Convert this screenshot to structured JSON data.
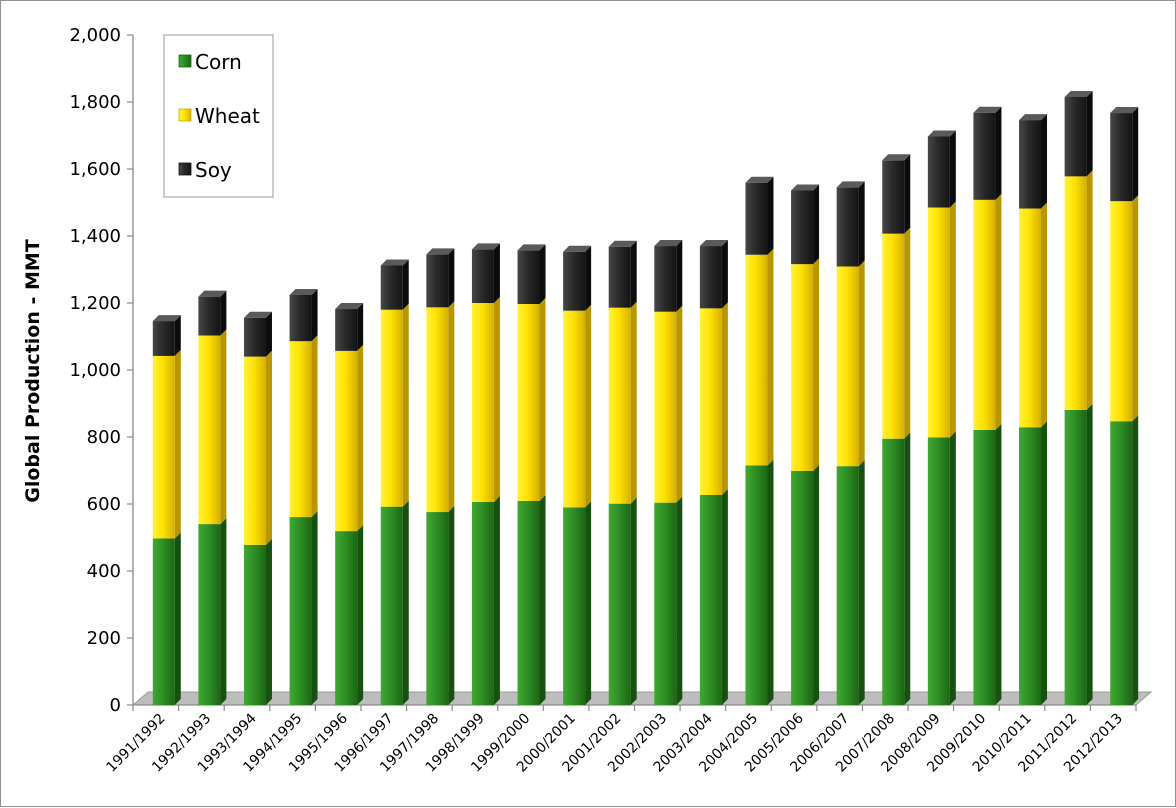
{
  "chart_data": {
    "type": "bar",
    "stacked": true,
    "style": "3d-column",
    "title": "",
    "xlabel": "",
    "ylabel": "Global Production - MMT",
    "ylim": [
      0,
      2000
    ],
    "yticks": [
      0,
      200,
      400,
      600,
      800,
      1000,
      1200,
      1400,
      1600,
      1800,
      2000
    ],
    "ytick_labels": [
      "0",
      "200",
      "400",
      "600",
      "800",
      "1,000",
      "1,200",
      "1,400",
      "1,600",
      "1,800",
      "2,000"
    ],
    "grid": false,
    "legend_position": "top-left",
    "categories": [
      "1991/1992",
      "1992/1993",
      "1993/1994",
      "1994/1995",
      "1995/1996",
      "1996/1997",
      "1997/1998",
      "1998/1999",
      "1999/2000",
      "2000/2001",
      "2001/2002",
      "2002/2003",
      "2003/2004",
      "2004/2005",
      "2005/2006",
      "2006/2007",
      "2007/2008",
      "2008/2009",
      "2009/2010",
      "2010/2011",
      "2011/2012",
      "2012/2013"
    ],
    "series": [
      {
        "name": "Corn",
        "color": "#2e8b22",
        "values": [
          497,
          540,
          478,
          561,
          519,
          592,
          576,
          606,
          609,
          590,
          601,
          604,
          627,
          715,
          699,
          713,
          795,
          799,
          821,
          829,
          881,
          847
        ]
      },
      {
        "name": "Wheat",
        "color": "#ffd700",
        "values": [
          545,
          563,
          562,
          525,
          538,
          588,
          611,
          594,
          588,
          587,
          585,
          570,
          557,
          629,
          617,
          596,
          612,
          686,
          687,
          653,
          697,
          657
        ]
      },
      {
        "name": "Soy",
        "color": "#2b2b2b",
        "values": [
          104,
          116,
          116,
          138,
          125,
          132,
          158,
          160,
          160,
          176,
          182,
          196,
          186,
          215,
          220,
          236,
          219,
          212,
          260,
          264,
          237,
          263
        ]
      }
    ]
  }
}
